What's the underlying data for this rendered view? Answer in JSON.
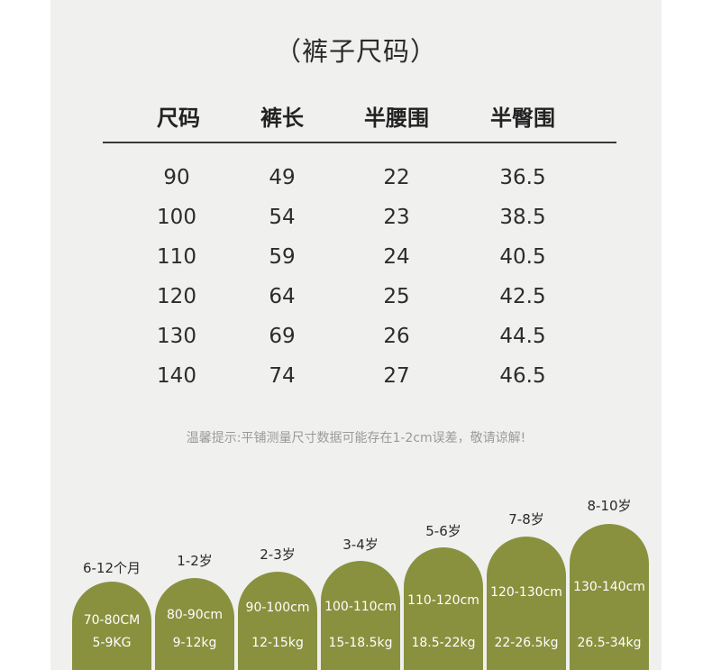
{
  "title": "（裤子尺码）",
  "headers": [
    "尺码",
    "裤长",
    "半腰围",
    "半臀围"
  ],
  "rows": [
    [
      "90",
      "49",
      "22",
      "36.5"
    ],
    [
      "100",
      "54",
      "23",
      "38.5"
    ],
    [
      "110",
      "59",
      "24",
      "40.5"
    ],
    [
      "120",
      "64",
      "25",
      "42.5"
    ],
    [
      "130",
      "69",
      "26",
      "44.5"
    ],
    [
      "140",
      "74",
      "27",
      "46.5"
    ]
  ],
  "note": "温馨提示:平铺测量尺寸数据可能存在1-2cm误差，敬请谅解!",
  "groups": [
    {
      "age": "6-12个月",
      "height": "70-80CM",
      "weight": "5-9KG"
    },
    {
      "age": "1-2岁",
      "height": "80-90cm",
      "weight": "9-12kg"
    },
    {
      "age": "2-3岁",
      "height": "90-100cm",
      "weight": "12-15kg"
    },
    {
      "age": "3-4岁",
      "height": "100-110cm",
      "weight": "15-18.5kg"
    },
    {
      "age": "5-6岁",
      "height": "110-120cm",
      "weight": "18.5-22kg"
    },
    {
      "age": "7-8岁",
      "height": "120-130cm",
      "weight": "22-26.5kg"
    },
    {
      "age": "8-10岁",
      "height": "130-140cm",
      "weight": "26.5-34kg"
    }
  ],
  "colors": {
    "arch": "#89913e",
    "panel": "#f0f0ef"
  }
}
